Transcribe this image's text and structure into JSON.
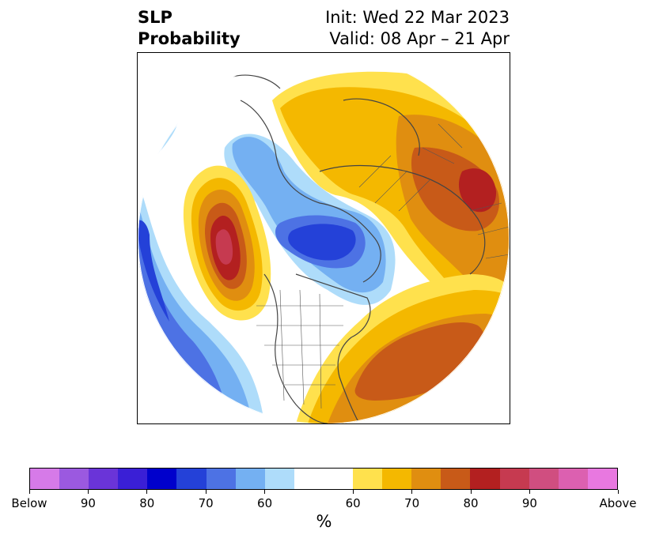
{
  "title": {
    "left_line1": "SLP",
    "left_line2": "Probability",
    "right_line1": "Init: Wed 22 Mar 2023",
    "right_line2": "Valid: 08 Apr – 21 Apr"
  },
  "colorbar": {
    "below_colors": [
      "#d67ae8",
      "#9b59e0",
      "#6a34d8",
      "#3a1fd6",
      "#0000cc",
      "#2441d8",
      "#4d72e4",
      "#74b0f2",
      "#aedcfa"
    ],
    "neutral_color": "#ffffff",
    "above_colors": [
      "#ffe14d",
      "#f4b800",
      "#e08e10",
      "#c85a18",
      "#b32020",
      "#c63a50",
      "#d04e80",
      "#dc60b0",
      "#e878e0"
    ],
    "tick_labels": [
      "Below",
      "90",
      "80",
      "70",
      "60",
      "60",
      "70",
      "80",
      "90",
      "Above"
    ],
    "unit_label": "%"
  },
  "map": {
    "colors": {
      "yellow": "#ffe14d",
      "gold": "#f4b800",
      "orange": "#e08e10",
      "dark_orange": "#c85a18",
      "red": "#b32020",
      "crimson": "#c63a50",
      "light_blue": "#aedcfa",
      "mid_blue": "#74b0f2",
      "blue": "#4d72e4",
      "royal_blue": "#2441d8",
      "coast": "#444444"
    }
  }
}
